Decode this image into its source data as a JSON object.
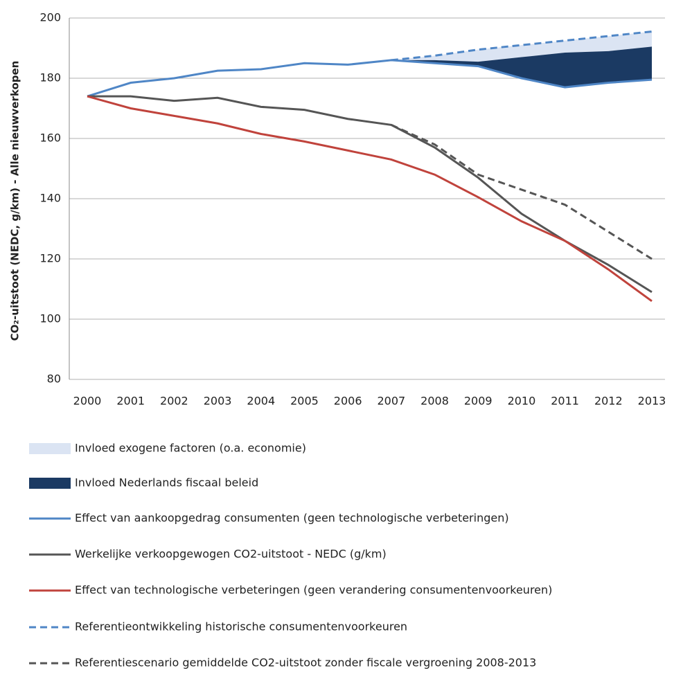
{
  "chart_data": {
    "type": "line",
    "ylabel": "CO₂-uitstoot (NEDC, g/km) - Alle nieuwverkopen",
    "categories": [
      "2000",
      "2001",
      "2002",
      "2003",
      "2004",
      "2005",
      "2006",
      "2007",
      "2008",
      "2009",
      "2010",
      "2011",
      "2012",
      "2013"
    ],
    "ylim": [
      80,
      200
    ],
    "yticks": [
      80,
      100,
      120,
      140,
      160,
      180,
      200
    ],
    "grid": true,
    "series": [
      {
        "name": "Invloed exogene factoren (o.a. economie)",
        "type": "area",
        "color": "#dbe4f3",
        "values": [
          null,
          null,
          null,
          null,
          null,
          null,
          null,
          0,
          1.5,
          4,
          4,
          4,
          5,
          5
        ]
      },
      {
        "name": "Invloed Nederlands fiscaal beleid",
        "type": "area",
        "color": "#1b3a63",
        "values": [
          null,
          null,
          null,
          null,
          null,
          null,
          null,
          0,
          1,
          1.5,
          7,
          11.5,
          10.5,
          11
        ]
      },
      {
        "name": "Effect van aankoopgedrag consumenten (geen technologische verbeteringen)",
        "color": "#4f86c6",
        "values": [
          174,
          178.5,
          180,
          182.5,
          183,
          185,
          184.5,
          186,
          185,
          184,
          180,
          177,
          178.5,
          179.5
        ]
      },
      {
        "name": "Werkelijke verkoopgewogen CO2-uitstoot - NEDC (g/km)",
        "color": "#555555",
        "values": [
          174,
          174,
          172.5,
          173.5,
          170.5,
          169.5,
          166.5,
          164.5,
          157,
          147,
          135,
          126,
          118,
          109
        ]
      },
      {
        "name": "Effect van technologische verbeteringen (geen verandering consumentenvoorkeuren)",
        "color": "#c0433c",
        "values": [
          174,
          170,
          167.5,
          165,
          161.5,
          159,
          156,
          153,
          148,
          140.5,
          132.5,
          126,
          116.5,
          106
        ]
      },
      {
        "name": "Referentieontwikkeling historische consumentenvoorkeuren",
        "color": "#4f86c6",
        "dashed": true,
        "values": [
          null,
          null,
          null,
          null,
          null,
          null,
          null,
          186,
          187.5,
          189.5,
          191,
          192.5,
          194,
          195.5
        ]
      },
      {
        "name": "Referentiescenario gemiddelde CO2-uitstoot zonder fiscale vergroening 2008-2013",
        "color": "#555555",
        "dashed": true,
        "values": [
          null,
          null,
          null,
          null,
          null,
          null,
          null,
          164.5,
          158,
          148,
          143,
          138,
          129,
          120
        ]
      }
    ]
  }
}
